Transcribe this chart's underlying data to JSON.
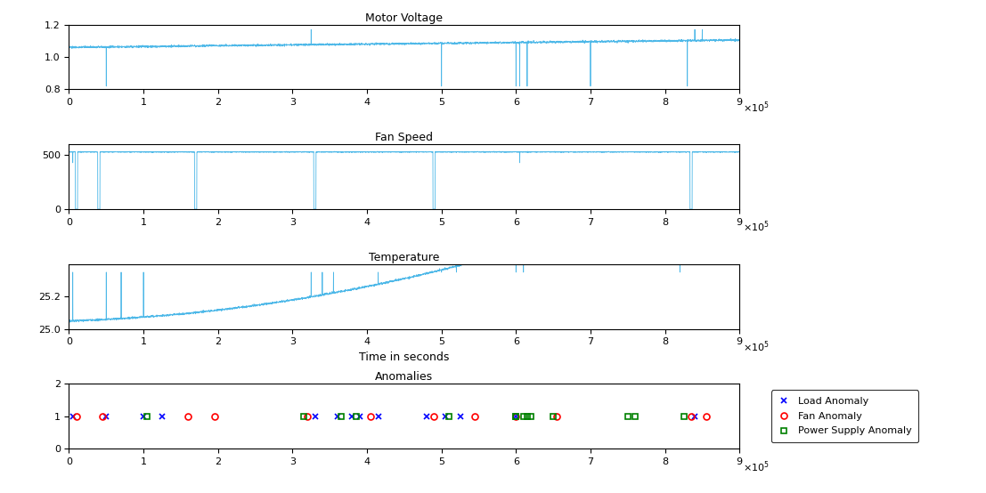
{
  "title1": "Motor Voltage",
  "title2": "Fan Speed",
  "title3": "Temperature",
  "title4": "Anomalies",
  "xlabel3": "Time in seconds",
  "xlim": [
    0,
    900000
  ],
  "xticks": [
    0,
    100000,
    200000,
    300000,
    400000,
    500000,
    600000,
    700000,
    800000,
    900000
  ],
  "xticklabels": [
    "0",
    "1",
    "2",
    "3",
    "4",
    "5",
    "6",
    "7",
    "8",
    "9"
  ],
  "voltage_ylim": [
    0.8,
    1.2
  ],
  "voltage_yticks": [
    0.8,
    1.0,
    1.2
  ],
  "fan_ylim": [
    0,
    600
  ],
  "fan_yticks": [
    0,
    500
  ],
  "temp_ylim": [
    25,
    25.4
  ],
  "temp_yticks": [
    25,
    25.2
  ],
  "anomaly_ylim": [
    0,
    2
  ],
  "anomaly_yticks": [
    0,
    1,
    2
  ],
  "line_color": "#4db8e8",
  "load_anomaly_x": [
    5000,
    50000,
    100000,
    125000,
    330000,
    360000,
    380000,
    390000,
    415000,
    480000,
    505000,
    525000,
    600000,
    840000
  ],
  "load_anomaly_y": [
    1,
    1,
    1,
    1,
    1,
    1,
    1,
    1,
    1,
    1,
    1,
    1,
    1,
    1
  ],
  "fan_anomaly_x": [
    10000,
    45000,
    160000,
    195000,
    320000,
    405000,
    490000,
    545000,
    600000,
    655000,
    835000,
    855000
  ],
  "fan_anomaly_y": [
    1,
    1,
    1,
    1,
    1,
    1,
    1,
    1,
    1,
    1,
    1,
    1
  ],
  "ps_anomaly_x": [
    105000,
    315000,
    365000,
    385000,
    510000,
    600000,
    610000,
    620000,
    650000,
    600000,
    615000,
    750000,
    760000,
    825000
  ],
  "ps_anomaly_y": [
    1,
    1,
    1,
    1,
    1,
    1,
    1,
    1,
    1,
    1,
    1,
    1,
    1,
    1
  ],
  "background_color": "#ffffff",
  "voltage_spikes_down": [
    50000,
    325000,
    500000,
    600000,
    605000,
    615000,
    700000,
    830000,
    840000
  ],
  "voltage_spikes_up": [
    325000,
    840000,
    850000
  ],
  "fan_spikes_zero": [
    10000,
    40000,
    170000,
    330000,
    490000,
    835000
  ],
  "fan_spikes_mid": [
    5000,
    605000
  ],
  "temp_spikes": [
    5000,
    50000,
    70000,
    100000,
    325000,
    340000,
    355000,
    415000,
    480000,
    500000,
    520000,
    600000,
    610000,
    820000
  ]
}
